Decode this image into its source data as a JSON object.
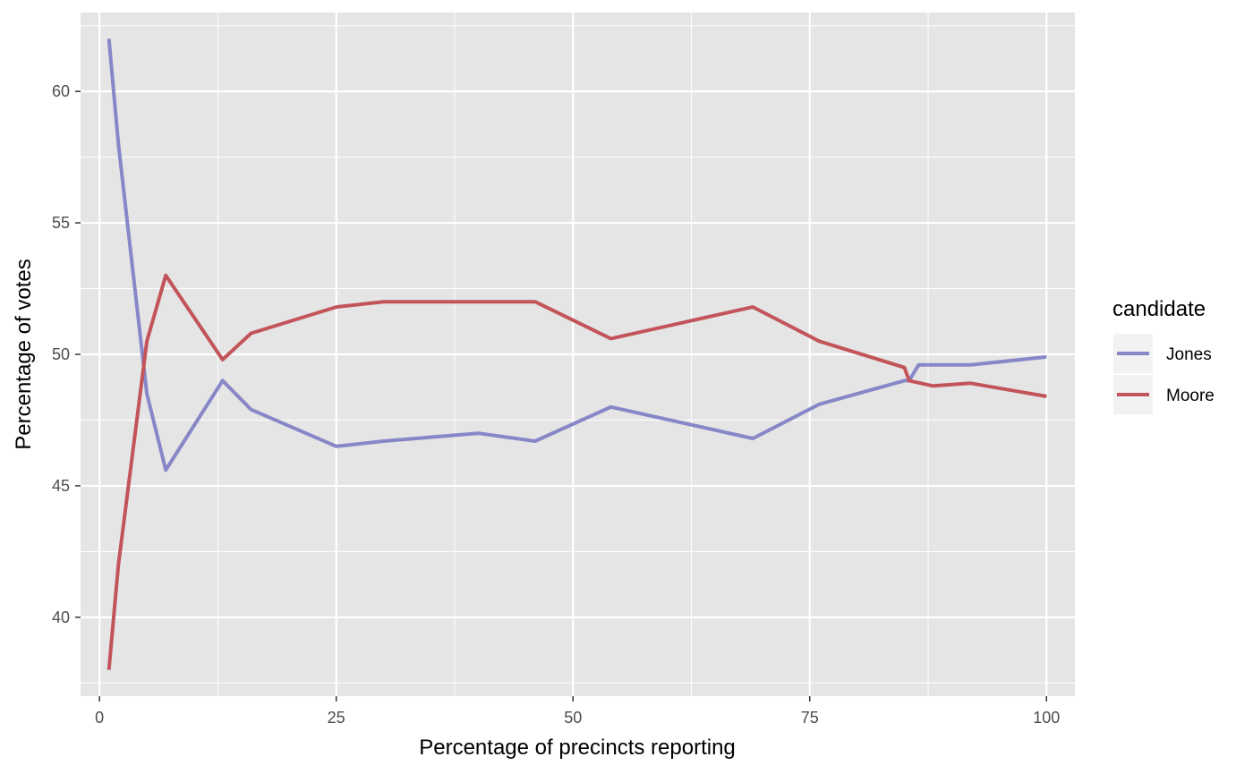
{
  "chart_data": {
    "type": "line",
    "title": "",
    "xlabel": "Percentage of precincts reporting",
    "ylabel": "Percentage of votes",
    "xlim": [
      -2,
      103
    ],
    "ylim": [
      37,
      63
    ],
    "x_ticks": [
      0,
      25,
      50,
      75,
      100
    ],
    "x_tick_labels": [
      "0",
      "25",
      "50",
      "75",
      "100"
    ],
    "y_ticks": [
      40,
      45,
      50,
      55,
      60
    ],
    "y_tick_labels": [
      "40",
      "45",
      "50",
      "55",
      "60"
    ],
    "grid": true,
    "legend": {
      "title": "candidate",
      "position": "right"
    },
    "background_color": "#e5e5e5",
    "grid_color": "#ffffff",
    "series": [
      {
        "name": "Jones",
        "color": "#8787c8",
        "points": [
          [
            1,
            62
          ],
          [
            2,
            58
          ],
          [
            5,
            48.5
          ],
          [
            7,
            45.6
          ],
          [
            13,
            49
          ],
          [
            16,
            47.9
          ],
          [
            25,
            46.5
          ],
          [
            30,
            46.7
          ],
          [
            40,
            47
          ],
          [
            46,
            46.7
          ],
          [
            54,
            48
          ],
          [
            69,
            46.8
          ],
          [
            76,
            48.1
          ],
          [
            85,
            49
          ],
          [
            85.5,
            49
          ],
          [
            86.5,
            49.6
          ],
          [
            92,
            49.6
          ],
          [
            100,
            49.9
          ]
        ]
      },
      {
        "name": "Moore",
        "color": "#c2545a",
        "points": [
          [
            1,
            38
          ],
          [
            2,
            42
          ],
          [
            5,
            50.5
          ],
          [
            7,
            53
          ],
          [
            13,
            49.8
          ],
          [
            16,
            50.8
          ],
          [
            25,
            51.8
          ],
          [
            30,
            52
          ],
          [
            40,
            52
          ],
          [
            46,
            52
          ],
          [
            54,
            50.6
          ],
          [
            69,
            51.8
          ],
          [
            76,
            50.5
          ],
          [
            85,
            49.5
          ],
          [
            85.5,
            49
          ],
          [
            88,
            48.8
          ],
          [
            92,
            48.9
          ],
          [
            100,
            48.4
          ]
        ]
      }
    ]
  }
}
